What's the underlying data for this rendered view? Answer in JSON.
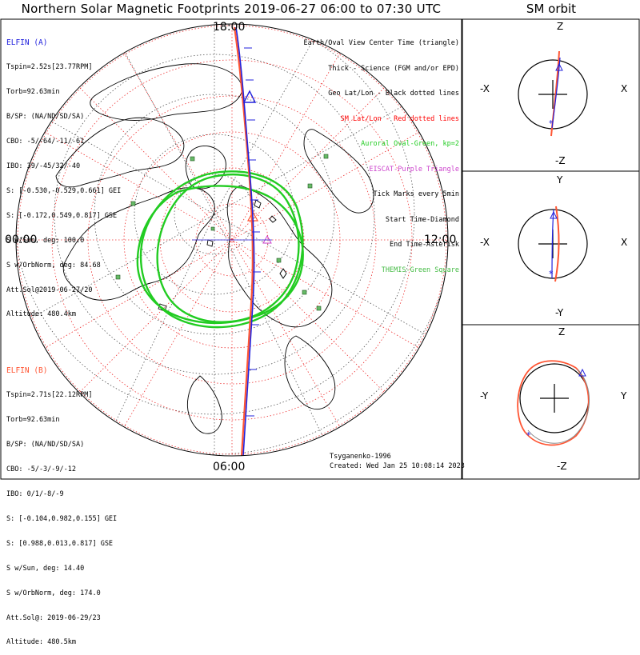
{
  "title": "Northern Solar Magnetic Footprints 2019-06-27 06:00 to 07:30 UTC",
  "orbit_title": "SM orbit",
  "polar": {
    "time_labels": {
      "top": "18:00",
      "left": "00:00",
      "right": "12:00",
      "bottom": "06:00"
    }
  },
  "legend": [
    {
      "text": "Earth/Oval View Center Time (triangle)",
      "color": "#000000"
    },
    {
      "text": "Thick - Science (FGM and/or EPD)",
      "color": "#000000"
    },
    {
      "text": "Geo Lat/Lon - Black dotted lines",
      "color": "#000000"
    },
    {
      "text": "SM Lat/Lon - Red dotted lines",
      "color": "#ff0000"
    },
    {
      "text": "Auroral Oval-Green, kp=2",
      "color": "#22cc22"
    },
    {
      "text": "EISCAT-Purple Triangle",
      "color": "#cc44cc"
    },
    {
      "text": "Tick Marks every 5min",
      "color": "#000000"
    },
    {
      "text": "Start Time-Diamond",
      "color": "#000000"
    },
    {
      "text": "End Time-Asterisk",
      "color": "#000000"
    },
    {
      "text": "THEMIS-Green Square",
      "color": "#44bb44"
    }
  ],
  "elfin_a": {
    "name": "ELFIN (A)",
    "color": "#2222dd",
    "lines": [
      "Tspin=2.52s[23.77RPM]",
      "Torb=92.63min",
      "B/SP: (NA/ND/SD/SA)",
      "CBO: -5/-64/-11/-61",
      "IBO: 39/-45/32/-40",
      "S: [-0.530,-0.529,0.661] GEI",
      "S: [-0.172,0.549,0.817] GSE",
      "S w/Sun, deg: 100.0",
      "S w/OrbNorm, deg: 84.68",
      "Att.Sol@2019-06-27/20",
      "Altitude: 480.4km"
    ]
  },
  "elfin_b": {
    "name": "ELFIN (B)",
    "color": "#ff5533",
    "lines": [
      "Tspin=2.71s[22.12RPM]",
      "Torb=92.63min",
      "B/SP: (NA/ND/SD/SA)",
      "CBO: -5/-3/-9/-12",
      "IBO: 0/1/-8/-9",
      "S: [-0.104,0.982,0.155] GEI",
      "S: [0.988,0.013,0.817] GSE",
      "S w/Sun, deg: 14.40",
      "S w/OrbNorm, deg: 174.0",
      "Att.Sol@: 2019-06-29/23",
      "Altitude: 480.5km"
    ]
  },
  "footer": {
    "model": "Tsyganenko-1996",
    "created": "Created: Wed Jan 25 10:08:14 2023"
  },
  "orbit_panels": [
    {
      "top": "Z",
      "bottom": "-Z",
      "left": "-X",
      "right": "X"
    },
    {
      "top": "Y",
      "bottom": "-Y",
      "left": "-X",
      "right": "X"
    },
    {
      "top": "Z",
      "bottom": "-Z",
      "left": "-Y",
      "right": "Y"
    }
  ]
}
